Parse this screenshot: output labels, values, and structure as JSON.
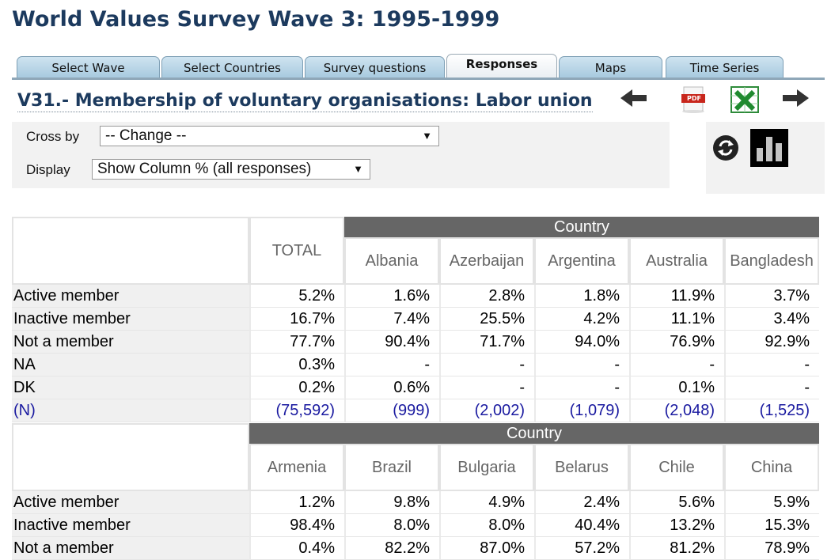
{
  "page_title": "World Values Survey Wave 3: 1995-1999",
  "tabs": [
    {
      "label": "Select Wave"
    },
    {
      "label": "Select Countries"
    },
    {
      "label": "Survey questions"
    },
    {
      "label": "Responses"
    },
    {
      "label": "Maps"
    },
    {
      "label": "Time Series"
    }
  ],
  "active_tab": "Responses",
  "variable_title": "V31.- Membership of voluntary organisations: Labor union",
  "toolbar": {
    "back": "arrow-left-icon",
    "pdf": "pdf-icon",
    "pdf_text": "PDF",
    "excel": "excel-icon",
    "forward": "arrow-right-icon",
    "refresh": "refresh-icon",
    "chart": "bar-chart-icon"
  },
  "controls": {
    "cross_by_label": "Cross by",
    "cross_by_value": "-- Change --",
    "display_label": "Display",
    "display_value": "Show Column % (all responses)"
  },
  "colors": {
    "title": "#1c3a5e",
    "country_header": "#666666",
    "n_row": "#1a1aa0"
  },
  "table1": {
    "total_label": "TOTAL",
    "group_label": "Country",
    "columns": [
      "Albania",
      "Azerbaijan",
      "Argentina",
      "Australia",
      "Bangladesh"
    ],
    "rows": [
      {
        "label": "Active member",
        "total": "5.2%",
        "values": [
          "1.6%",
          "2.8%",
          "1.8%",
          "11.9%",
          "3.7%"
        ]
      },
      {
        "label": "Inactive member",
        "total": "16.7%",
        "values": [
          "7.4%",
          "25.5%",
          "4.2%",
          "11.1%",
          "3.4%"
        ]
      },
      {
        "label": "Not a member",
        "total": "77.7%",
        "values": [
          "90.4%",
          "71.7%",
          "94.0%",
          "76.9%",
          "92.9%"
        ]
      },
      {
        "label": "NA",
        "total": "0.3%",
        "values": [
          "-",
          "-",
          "-",
          "-",
          "-"
        ]
      },
      {
        "label": "DK",
        "total": "0.2%",
        "values": [
          "0.6%",
          "-",
          "-",
          "0.1%",
          "-"
        ]
      },
      {
        "label": "(N)",
        "total": "(75,592)",
        "values": [
          "(999)",
          "(2,002)",
          "(1,079)",
          "(2,048)",
          "(1,525)"
        ]
      }
    ]
  },
  "table2": {
    "group_label": "Country",
    "columns": [
      "Armenia",
      "Brazil",
      "Bulgaria",
      "Belarus",
      "Chile",
      "China"
    ],
    "rows": [
      {
        "label": "Active member",
        "values": [
          "1.2%",
          "9.8%",
          "4.9%",
          "2.4%",
          "5.6%",
          "5.9%"
        ]
      },
      {
        "label": "Inactive member",
        "values": [
          "98.4%",
          "8.0%",
          "8.0%",
          "40.4%",
          "13.2%",
          "15.3%"
        ]
      },
      {
        "label": "Not a member",
        "values": [
          "0.4%",
          "82.2%",
          "87.0%",
          "57.2%",
          "81.2%",
          "78.9%"
        ]
      }
    ]
  }
}
